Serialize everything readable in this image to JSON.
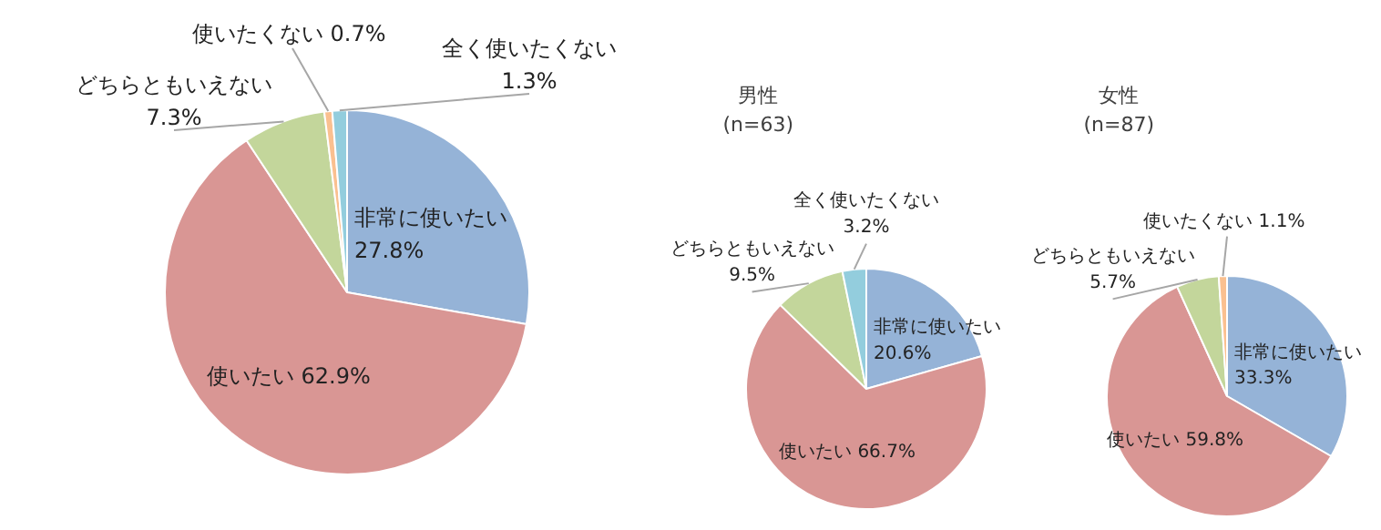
{
  "chart_data": [
    {
      "type": "pie",
      "categories": [
        "非常に使いたい",
        "使いたい",
        "どちらともいえない",
        "使いたくない",
        "全く使いたくない"
      ],
      "values": [
        27.8,
        62.9,
        7.3,
        0.7,
        1.3
      ],
      "colors": [
        "#95b3d7",
        "#d99694",
        "#c3d69b",
        "#fac090",
        "#93cddd"
      ],
      "value_labels": [
        "27.8%",
        "62.9%",
        "7.3%",
        "0.7%",
        "1.3%"
      ]
    },
    {
      "type": "pie",
      "title": "男性",
      "subtitle": "(n=63)",
      "categories": [
        "非常に使いたい",
        "使いたい",
        "どちらともいえない",
        "全く使いたくない"
      ],
      "values": [
        20.6,
        66.7,
        9.5,
        3.2
      ],
      "colors": [
        "#95b3d7",
        "#d99694",
        "#c3d69b",
        "#93cddd"
      ],
      "value_labels": [
        "20.6%",
        "66.7%",
        "9.5%",
        "3.2%"
      ]
    },
    {
      "type": "pie",
      "title": "女性",
      "subtitle": "(n=87)",
      "categories": [
        "非常に使いたい",
        "使いたい",
        "どちらともいえない",
        "使いたくない"
      ],
      "values": [
        33.3,
        59.8,
        5.7,
        1.1
      ],
      "colors": [
        "#95b3d7",
        "#d99694",
        "#c3d69b",
        "#fac090"
      ],
      "value_labels": [
        "33.3%",
        "59.8%",
        "5.7%",
        "1.1%"
      ]
    }
  ]
}
